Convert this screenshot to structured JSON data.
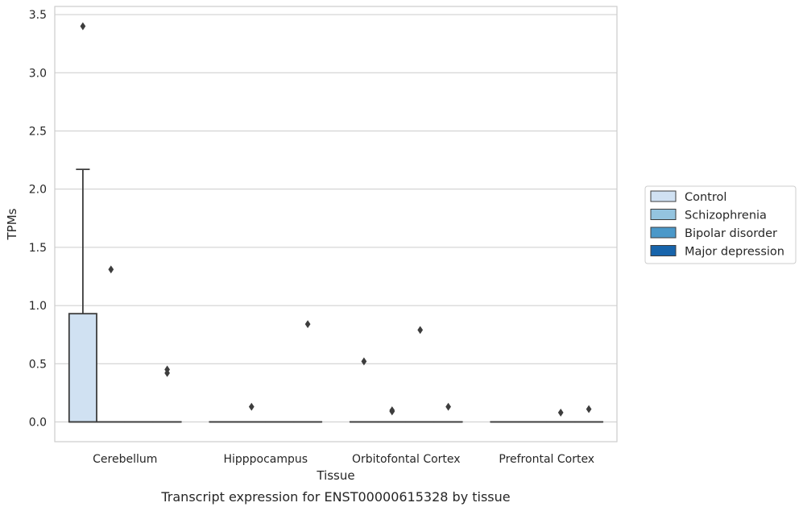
{
  "caption": "Transcript expression for ENST00000615328 by tissue",
  "chart_data": {
    "type": "boxplot",
    "xlabel": "Tissue",
    "ylabel": "TPMs",
    "ylim": [
      -0.17,
      3.57
    ],
    "yticks": [
      "0.0",
      "0.5",
      "1.0",
      "1.5",
      "2.0",
      "2.5",
      "3.0",
      "3.5"
    ],
    "ytick_values": [
      0,
      0.5,
      1.0,
      1.5,
      2.0,
      2.5,
      3.0,
      3.5
    ],
    "grid": true,
    "legend_position": "right",
    "categories": [
      "Cerebellum",
      "Hipppocampus",
      "Orbitofontal Cortex",
      "Prefrontal Cortex"
    ],
    "series": [
      {
        "name": "Control",
        "color": "#d0e1f2",
        "boxes": [
          {
            "q1": 0,
            "median": 0,
            "q3": 0.93,
            "whisker_low": 0,
            "whisker_high": 2.17,
            "outliers": [
              3.4
            ]
          },
          {
            "q1": 0,
            "median": 0,
            "q3": 0,
            "whisker_low": 0,
            "whisker_high": 0,
            "outliers": []
          },
          {
            "q1": 0,
            "median": 0,
            "q3": 0,
            "whisker_low": 0,
            "whisker_high": 0,
            "outliers": [
              0.52
            ]
          },
          {
            "q1": 0,
            "median": 0,
            "q3": 0,
            "whisker_low": 0,
            "whisker_high": 0,
            "outliers": []
          }
        ]
      },
      {
        "name": "Schizophrenia",
        "color": "#94c4df",
        "boxes": [
          {
            "q1": 0,
            "median": 0,
            "q3": 0,
            "whisker_low": 0,
            "whisker_high": 0,
            "outliers": [
              1.31
            ]
          },
          {
            "q1": 0,
            "median": 0,
            "q3": 0,
            "whisker_low": 0,
            "whisker_high": 0,
            "outliers": [
              0.13
            ]
          },
          {
            "q1": 0,
            "median": 0,
            "q3": 0,
            "whisker_low": 0,
            "whisker_high": 0,
            "outliers": [
              0.1,
              0.09
            ]
          },
          {
            "q1": 0,
            "median": 0,
            "q3": 0,
            "whisker_low": 0,
            "whisker_high": 0,
            "outliers": []
          }
        ]
      },
      {
        "name": "Bipolar disorder",
        "color": "#4a98c9",
        "boxes": [
          {
            "q1": 0,
            "median": 0,
            "q3": 0,
            "whisker_low": 0,
            "whisker_high": 0,
            "outliers": []
          },
          {
            "q1": 0,
            "median": 0,
            "q3": 0,
            "whisker_low": 0,
            "whisker_high": 0,
            "outliers": []
          },
          {
            "q1": 0,
            "median": 0,
            "q3": 0,
            "whisker_low": 0,
            "whisker_high": 0,
            "outliers": [
              0.79
            ]
          },
          {
            "q1": 0,
            "median": 0,
            "q3": 0,
            "whisker_low": 0,
            "whisker_high": 0,
            "outliers": [
              0.08
            ]
          }
        ]
      },
      {
        "name": "Major depression",
        "color": "#1764ab",
        "boxes": [
          {
            "q1": 0,
            "median": 0,
            "q3": 0,
            "whisker_low": 0,
            "whisker_high": 0,
            "outliers": [
              0.45,
              0.42
            ]
          },
          {
            "q1": 0,
            "median": 0,
            "q3": 0,
            "whisker_low": 0,
            "whisker_high": 0,
            "outliers": [
              0.84
            ]
          },
          {
            "q1": 0,
            "median": 0,
            "q3": 0,
            "whisker_low": 0,
            "whisker_high": 0,
            "outliers": [
              0.13
            ]
          },
          {
            "q1": 0,
            "median": 0,
            "q3": 0,
            "whisker_low": 0,
            "whisker_high": 0,
            "outliers": [
              0.11
            ]
          }
        ]
      }
    ]
  }
}
